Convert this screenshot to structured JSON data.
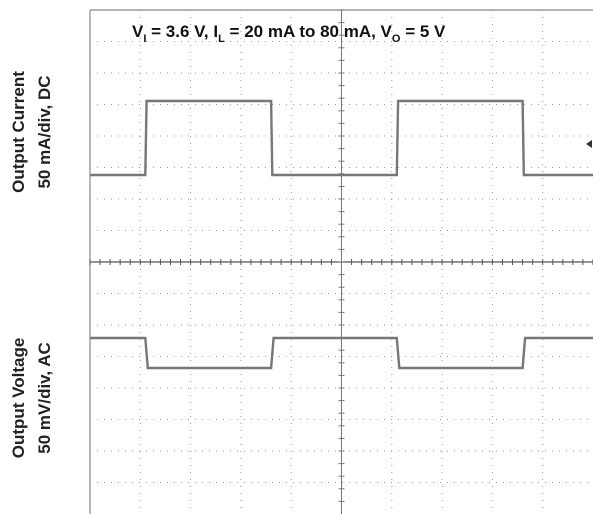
{
  "chart_data": {
    "type": "line",
    "title": {
      "v_main": "V",
      "v_sub": "I",
      "part1": " = 3.6 V, I",
      "i_sub": "L",
      "part2": " = 20 mA to 80 mA, V",
      "vo_sub": "O",
      "part3": " = 5 V"
    },
    "grid": true,
    "x_divisions": 10,
    "panels": [
      {
        "label_line1": "Output Current",
        "label_line2": "50 mA/div, DC",
        "y_divisions": 8,
        "series": [
          {
            "x": [
              0,
              2.2,
              2.25,
              7.2,
              7.25,
              12.2,
              12.25,
              17.2,
              17.25,
              20
            ],
            "y": [
              20,
              20,
              80,
              80,
              20,
              20,
              80,
              80,
              20,
              20
            ]
          }
        ]
      },
      {
        "label_line1": "Output Voltage",
        "label_line2": "50 mV/div, AC",
        "y_divisions": 8,
        "series": [
          {
            "x": [
              0,
              2.2,
              2.3,
              7.2,
              7.3,
              12.2,
              12.3,
              17.2,
              17.3,
              20
            ],
            "y": [
              0,
              0,
              -35,
              -35,
              0,
              0,
              -35,
              -35,
              0,
              0
            ]
          }
        ]
      }
    ]
  },
  "colors": {
    "trace": "#777777",
    "grid": "#999999",
    "frame": "#888888",
    "text": "#111111"
  }
}
